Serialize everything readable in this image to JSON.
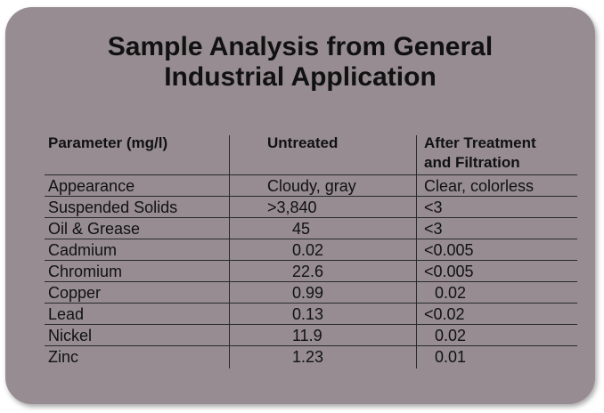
{
  "title": {
    "line1": "Sample Analysis from General",
    "line2": "Industrial Application"
  },
  "headers": {
    "parameter": "Parameter (mg/l)",
    "untreated": "Untreated",
    "after_line1": "After Treatment",
    "after_line2": "and Filtration"
  },
  "rows": [
    {
      "parameter": "Appearance",
      "untreated": "Cloudy, gray",
      "after": "Clear, colorless"
    },
    {
      "parameter": "Suspended Solids",
      "untreated": ">3,840",
      "after": "<3"
    },
    {
      "parameter": "Oil & Grease",
      "untreated": "45",
      "after": "<3"
    },
    {
      "parameter": "Cadmium",
      "untreated": "0.02",
      "after": "<0.005"
    },
    {
      "parameter": "Chromium",
      "untreated": "22.6",
      "after": "<0.005"
    },
    {
      "parameter": "Copper",
      "untreated": "0.99",
      "after": "0.02"
    },
    {
      "parameter": "Lead",
      "untreated": "0.13",
      "after": "<0.02"
    },
    {
      "parameter": "Nickel",
      "untreated": "11.9",
      "after": "0.02"
    },
    {
      "parameter": "Zinc",
      "untreated": "1.23",
      "after": "0.01"
    }
  ]
}
